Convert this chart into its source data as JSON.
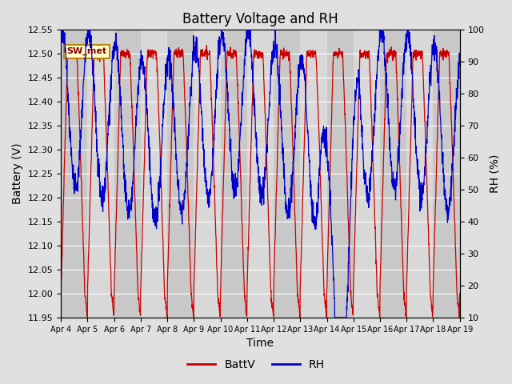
{
  "title": "Battery Voltage and RH",
  "xlabel": "Time",
  "ylabel_left": "Battery (V)",
  "ylabel_right": "RH (%)",
  "ylim_left": [
    11.95,
    12.55
  ],
  "ylim_right": [
    10,
    100
  ],
  "yticks_left": [
    11.95,
    12.0,
    12.05,
    12.1,
    12.15,
    12.2,
    12.25,
    12.3,
    12.35,
    12.4,
    12.45,
    12.5,
    12.55
  ],
  "yticks_right": [
    10,
    20,
    30,
    40,
    50,
    60,
    70,
    80,
    90,
    100
  ],
  "xtick_labels": [
    "Apr 4",
    "Apr 5",
    "Apr 6",
    "Apr 7",
    "Apr 8",
    "Apr 9",
    "Apr 10",
    "Apr 11",
    "Apr 12",
    "Apr 13",
    "Apr 14",
    "Apr 15",
    "Apr 16",
    "Apr 17",
    "Apr 18",
    "Apr 19"
  ],
  "legend_labels": [
    "BattV",
    "RH"
  ],
  "legend_colors": [
    "#cc0000",
    "#0000cc"
  ],
  "station_label": "SW_met",
  "batt_color": "#cc0000",
  "rh_color": "#0000cc",
  "bg_color": "#e0e0e0",
  "plot_bg_color": "#c8c8c8",
  "plot_bg_light": "#d8d8d8",
  "title_fontsize": 12,
  "axis_fontsize": 10,
  "tick_fontsize": 8
}
